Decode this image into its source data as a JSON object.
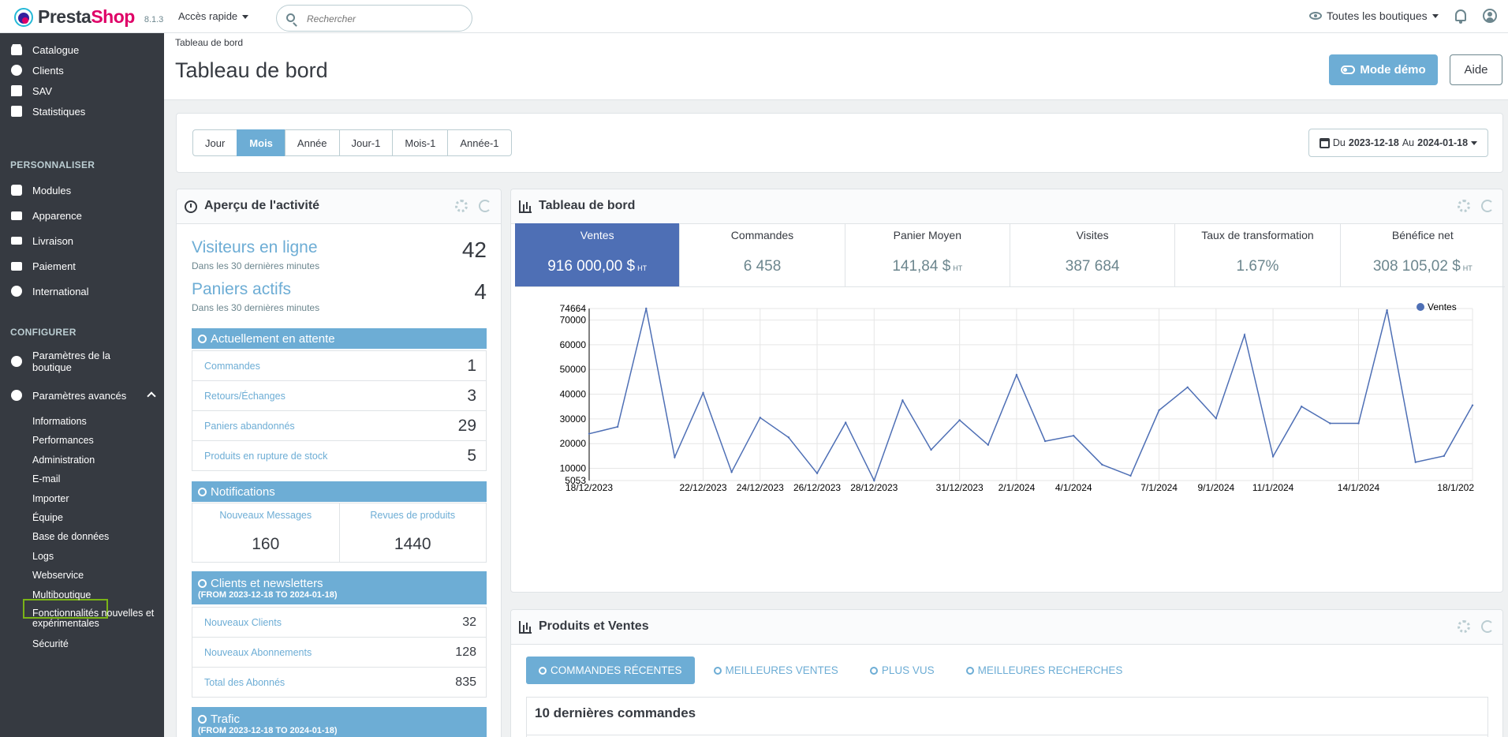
{
  "header": {
    "logo_name": "Presta",
    "logo_shop": "Shop",
    "version": "8.1.3",
    "quick_access": "Accès rapide",
    "search_placeholder": "Rechercher",
    "shops_label": "Toutes les boutiques"
  },
  "sidebar": {
    "main_items": [
      "Catalogue",
      "Clients",
      "SAV",
      "Statistiques"
    ],
    "personalize_title": "PERSONNALISER",
    "personalize_items": [
      "Modules",
      "Apparence",
      "Livraison",
      "Paiement",
      "International"
    ],
    "configure_title": "CONFIGURER",
    "shop_params": "Paramètres de la boutique",
    "advanced_params": "Paramètres avancés",
    "sub_items": [
      "Informations",
      "Performances",
      "Administration",
      "E-mail",
      "Importer",
      "Équipe",
      "Base de données",
      "Logs",
      "Webservice",
      "Multiboutique",
      "Fonctionnalités nouvelles et expérimentales",
      "Sécurité"
    ]
  },
  "page": {
    "breadcrumb": "Tableau de bord",
    "title": "Tableau de bord",
    "demo_button": "Mode démo",
    "help_button": "Aide"
  },
  "periods": [
    "Jour",
    "Mois",
    "Année",
    "Jour-1",
    "Mois-1",
    "Année-1"
  ],
  "active_period": "Mois",
  "date_range": {
    "prefix": "Du",
    "from": "2023-12-18",
    "middle": "Au",
    "to": "2024-01-18"
  },
  "activity": {
    "title": "Aperçu de l'activité",
    "visitors_label": "Visiteurs en ligne",
    "visitors_sub": "Dans les 30 dernières minutes",
    "visitors_value": "42",
    "carts_label": "Paniers actifs",
    "carts_sub": "Dans les 30 dernières minutes",
    "carts_value": "4",
    "pending_title": "Actuellement en attente",
    "pending": [
      {
        "label": "Commandes",
        "value": "1"
      },
      {
        "label": "Retours/Échanges",
        "value": "3"
      },
      {
        "label": "Paniers abandonnés",
        "value": "29"
      },
      {
        "label": "Produits en rupture de stock",
        "value": "5"
      }
    ],
    "notifications_title": "Notifications",
    "notif_messages_label": "Nouveaux Messages",
    "notif_messages_value": "160",
    "notif_reviews_label": "Revues de produits",
    "notif_reviews_value": "1440",
    "customers_title": "Clients et newsletters",
    "customers_sub": "(FROM 2023-12-18 TO 2024-01-18)",
    "customers": [
      {
        "label": "Nouveaux Clients",
        "value": "32"
      },
      {
        "label": "Nouveaux Abonnements",
        "value": "128"
      },
      {
        "label": "Total des Abonnés",
        "value": "835"
      }
    ],
    "traffic_title": "Trafic",
    "traffic_sub": "(FROM 2023-12-18 TO 2024-01-18)"
  },
  "dashboard": {
    "title": "Tableau de bord",
    "kpis": [
      {
        "label": "Ventes",
        "value": "916 000,00 $",
        "ht": "HT"
      },
      {
        "label": "Commandes",
        "value": "6 458",
        "ht": ""
      },
      {
        "label": "Panier Moyen",
        "value": "141,84 $",
        "ht": "HT"
      },
      {
        "label": "Visites",
        "value": "387 684",
        "ht": ""
      },
      {
        "label": "Taux de transformation",
        "value": "1.67%",
        "ht": ""
      },
      {
        "label": "Bénéfice net",
        "value": "308 105,02 $",
        "ht": "HT"
      }
    ]
  },
  "chart_data": {
    "type": "line",
    "legend": "Ventes",
    "legend_position": "top-right",
    "grid": true,
    "ylim": [
      5053,
      74664
    ],
    "yticks": [
      5053,
      10000,
      20000,
      30000,
      40000,
      50000,
      60000,
      70000,
      74664
    ],
    "xtick_labels": [
      {
        "i": 0,
        "label": "18/12/2023"
      },
      {
        "i": 4,
        "label": "22/12/2023"
      },
      {
        "i": 6,
        "label": "24/12/2023"
      },
      {
        "i": 8,
        "label": "26/12/2023"
      },
      {
        "i": 10,
        "label": "28/12/2023"
      },
      {
        "i": 13,
        "label": "31/12/2023"
      },
      {
        "i": 15,
        "label": "2/1/2024"
      },
      {
        "i": 17,
        "label": "4/1/2024"
      },
      {
        "i": 20,
        "label": "7/1/2024"
      },
      {
        "i": 22,
        "label": "9/1/2024"
      },
      {
        "i": 24,
        "label": "11/1/2024"
      },
      {
        "i": 27,
        "label": "14/1/2024"
      },
      {
        "i": 31,
        "label": "18/1/202"
      }
    ],
    "series": [
      {
        "name": "Ventes",
        "values": [
          24000,
          26800,
          74664,
          14500,
          40500,
          8500,
          30500,
          22500,
          8000,
          28500,
          5053,
          37500,
          17500,
          29500,
          19500,
          47800,
          21000,
          23200,
          11500,
          7000,
          33500,
          42800,
          30200,
          64000,
          14800,
          35000,
          28200,
          28200,
          74000,
          12500,
          15000,
          35500
        ]
      }
    ]
  },
  "products": {
    "title": "Produits et Ventes",
    "tabs": [
      "COMMANDES RÉCENTES",
      "MEILLEURES VENTES",
      "PLUS VUS",
      "MEILLEURES RECHERCHES"
    ],
    "recent_title": "10 dernières commandes"
  }
}
